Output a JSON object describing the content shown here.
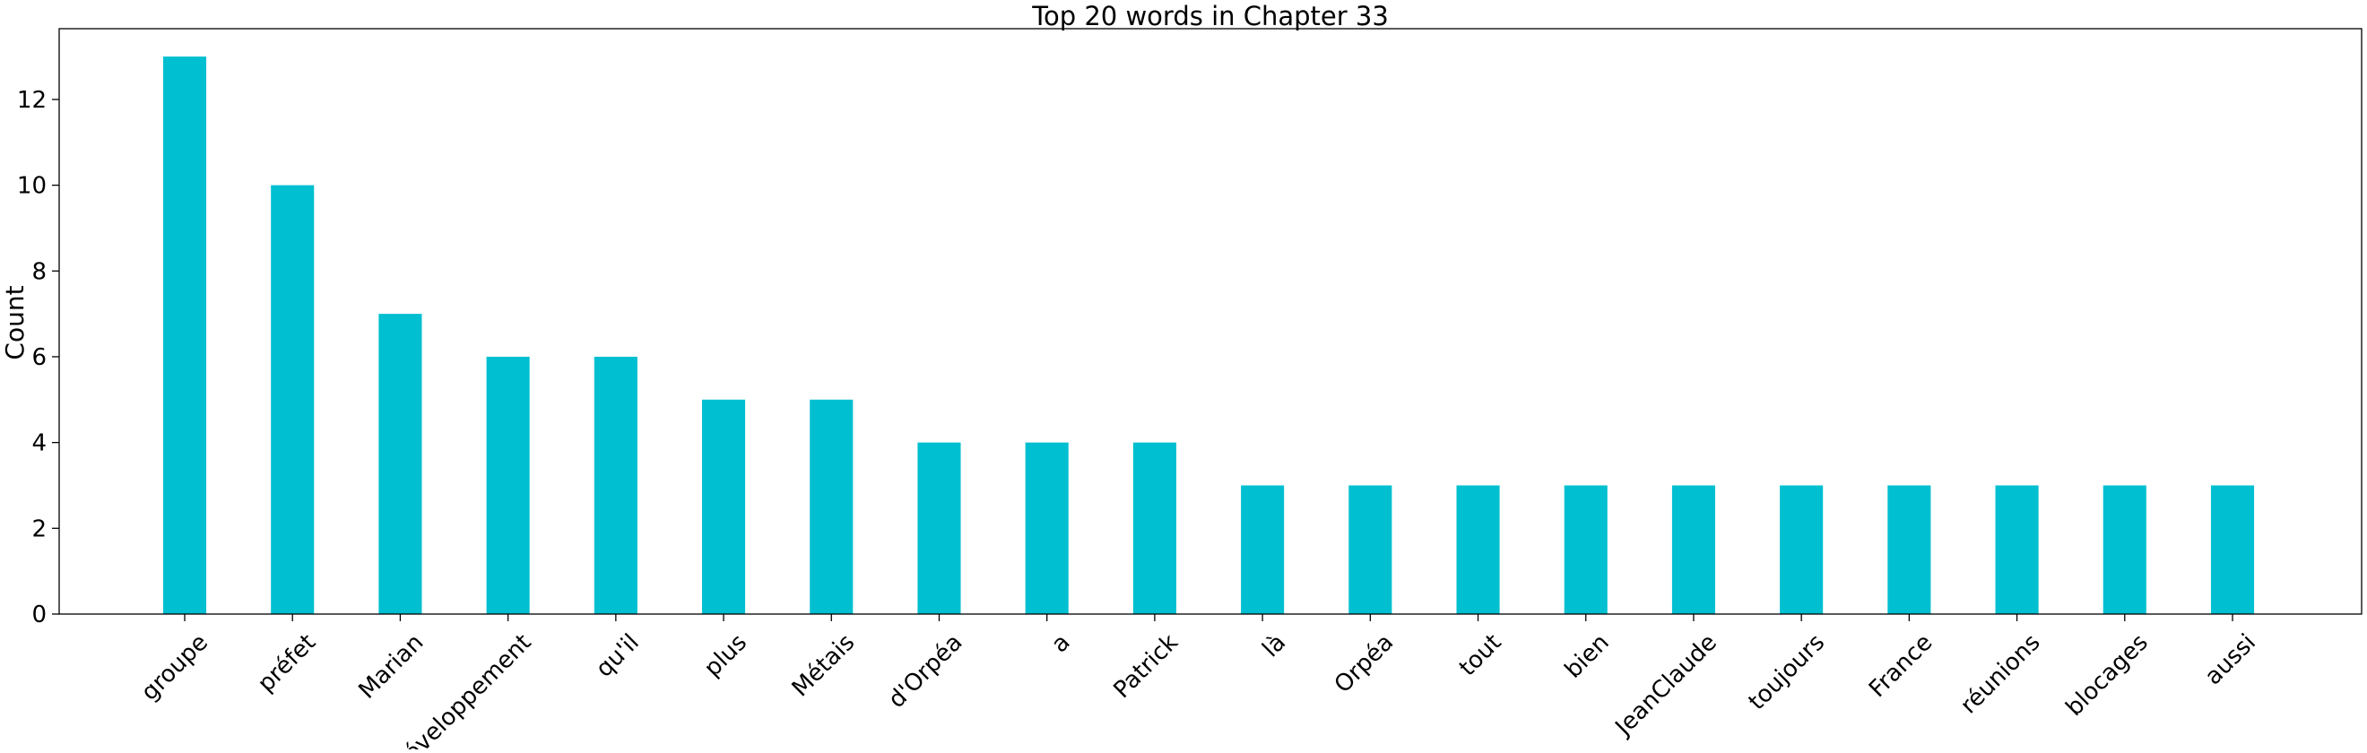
{
  "chart_data": {
    "type": "bar",
    "title": "Top 20 words in Chapter 33",
    "xlabel": "",
    "ylabel": "Count",
    "categories": [
      "groupe",
      "préfet",
      "Marian",
      "développement",
      "qu'il",
      "plus",
      "Métais",
      "d'Orpéa",
      "a",
      "Patrick",
      "là",
      "Orpéa",
      "tout",
      "bien",
      "JeanClaude",
      "toujours",
      "France",
      "réunions",
      "blocages",
      "aussi"
    ],
    "values": [
      13,
      10,
      7,
      6,
      6,
      5,
      5,
      4,
      4,
      4,
      3,
      3,
      3,
      3,
      3,
      3,
      3,
      3,
      3,
      3
    ],
    "ylim": [
      0,
      13.65
    ],
    "yticks": [
      0,
      2,
      4,
      6,
      8,
      10,
      12
    ],
    "bar_color": "#00bfd0",
    "grid": false,
    "xtick_rotation_deg": 45
  }
}
